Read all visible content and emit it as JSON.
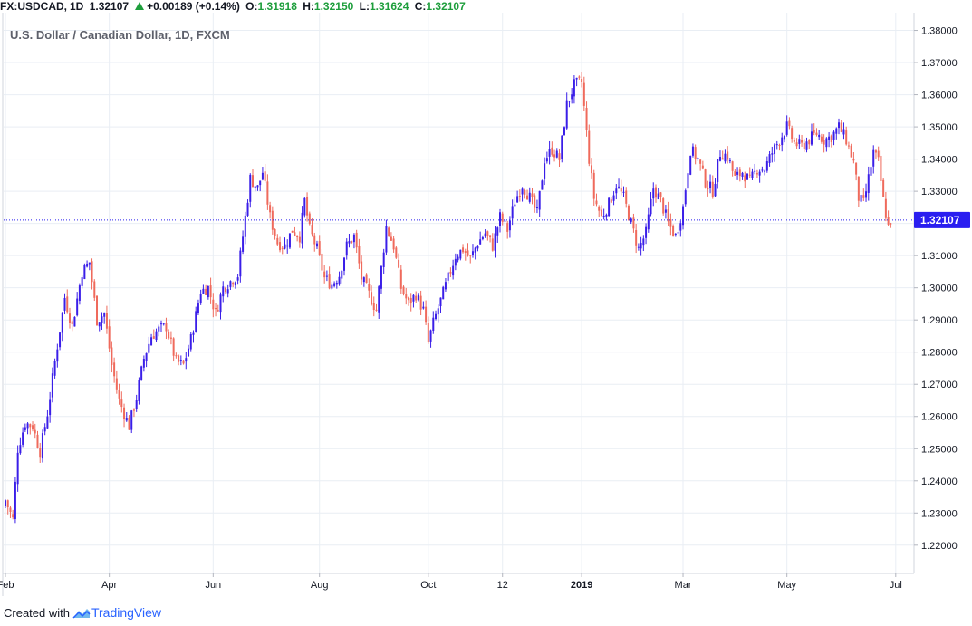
{
  "header": {
    "symbol": "FX:USDCAD,",
    "interval": "1D",
    "last": "1.32107",
    "change": "+0.00189 (+0.14%)",
    "o_label": "O:",
    "o_value": "1.31918",
    "h_label": "H:",
    "h_value": "1.32150",
    "l_label": "L:",
    "l_value": "1.31624",
    "c_label": "C:",
    "c_value": "1.32107"
  },
  "footer": {
    "created_with": "Created with",
    "brand": "TradingView"
  },
  "colors": {
    "up": "#3a1ee8",
    "down": "#ef6a5c",
    "grid": "#e9eef4",
    "price_label_bg": "#2a1ef0",
    "text": "#131722",
    "positive": "#1e9e3c"
  },
  "chart_data": {
    "type": "candlestick",
    "title": "U.S. Dollar / Canadian Dollar, 1D, FXCM",
    "ylim": [
      1.2115,
      1.3855
    ],
    "y_ticks": [
      1.22,
      1.23,
      1.24,
      1.25,
      1.26,
      1.27,
      1.28,
      1.29,
      1.3,
      1.31,
      1.32,
      1.33,
      1.34,
      1.35,
      1.36,
      1.37,
      1.38
    ],
    "y_tick_labels": [
      "1.22000",
      "1.23000",
      "1.24000",
      "1.25000",
      "1.26000",
      "1.27000",
      "1.28000",
      "1.29000",
      "1.30000",
      "1.31000",
      "1.32000",
      "1.33000",
      "1.34000",
      "1.35000",
      "1.36000",
      "1.37000",
      "1.38000"
    ],
    "x_ticks": [
      {
        "label": "Feb",
        "index": 0
      },
      {
        "label": "Apr",
        "index": 42
      },
      {
        "label": "Jun",
        "index": 84
      },
      {
        "label": "Aug",
        "index": 127
      },
      {
        "label": "Oct",
        "index": 171
      },
      {
        "label": "12",
        "index": 201
      },
      {
        "label": "2019",
        "index": 233
      },
      {
        "label": "Mar",
        "index": 274
      },
      {
        "label": "May",
        "index": 316
      },
      {
        "label": "Jul",
        "index": 360
      }
    ],
    "current_price": 1.32107,
    "current_price_label": "1.32107",
    "series_summary": "Daily USD/CAD from late Jan 2018 to late Jun 2019",
    "close_path": [
      [
        0,
        1.234
      ],
      [
        3,
        1.228
      ],
      [
        5,
        1.25
      ],
      [
        8,
        1.258
      ],
      [
        11,
        1.257
      ],
      [
        14,
        1.249
      ],
      [
        17,
        1.261
      ],
      [
        20,
        1.277
      ],
      [
        24,
        1.297
      ],
      [
        27,
        1.288
      ],
      [
        31,
        1.305
      ],
      [
        34,
        1.308
      ],
      [
        37,
        1.29
      ],
      [
        40,
        1.292
      ],
      [
        43,
        1.276
      ],
      [
        46,
        1.265
      ],
      [
        50,
        1.257
      ],
      [
        53,
        1.266
      ],
      [
        56,
        1.278
      ],
      [
        59,
        1.285
      ],
      [
        62,
        1.287
      ],
      [
        65,
        1.288
      ],
      [
        69,
        1.277
      ],
      [
        72,
        1.276
      ],
      [
        75,
        1.284
      ],
      [
        79,
        1.299
      ],
      [
        82,
        1.3
      ],
      [
        85,
        1.292
      ],
      [
        88,
        1.3
      ],
      [
        91,
        1.302
      ],
      [
        94,
        1.304
      ],
      [
        97,
        1.322
      ],
      [
        99,
        1.334
      ],
      [
        102,
        1.331
      ],
      [
        104,
        1.336
      ],
      [
        107,
        1.322
      ],
      [
        110,
        1.314
      ],
      [
        113,
        1.313
      ],
      [
        116,
        1.318
      ],
      [
        119,
        1.316
      ],
      [
        121,
        1.327
      ],
      [
        123,
        1.318
      ],
      [
        126,
        1.312
      ],
      [
        129,
        1.303
      ],
      [
        132,
        1.301
      ],
      [
        135,
        1.304
      ],
      [
        138,
        1.313
      ],
      [
        141,
        1.316
      ],
      [
        144,
        1.303
      ],
      [
        147,
        1.298
      ],
      [
        150,
        1.293
      ],
      [
        152,
        1.306
      ],
      [
        154,
        1.319
      ],
      [
        157,
        1.313
      ],
      [
        160,
        1.3
      ],
      [
        163,
        1.295
      ],
      [
        166,
        1.298
      ],
      [
        169,
        1.293
      ],
      [
        171,
        1.283
      ],
      [
        173,
        1.289
      ],
      [
        176,
        1.296
      ],
      [
        179,
        1.303
      ],
      [
        182,
        1.31
      ],
      [
        185,
        1.312
      ],
      [
        188,
        1.309
      ],
      [
        191,
        1.314
      ],
      [
        194,
        1.317
      ],
      [
        197,
        1.313
      ],
      [
        200,
        1.322
      ],
      [
        203,
        1.318
      ],
      [
        206,
        1.327
      ],
      [
        209,
        1.332
      ],
      [
        212,
        1.328
      ],
      [
        215,
        1.323
      ],
      [
        218,
        1.34
      ],
      [
        221,
        1.343
      ],
      [
        224,
        1.34
      ],
      [
        227,
        1.357
      ],
      [
        230,
        1.363
      ],
      [
        233,
        1.364
      ],
      [
        236,
        1.34
      ],
      [
        238,
        1.328
      ],
      [
        241,
        1.322
      ],
      [
        244,
        1.326
      ],
      [
        247,
        1.332
      ],
      [
        250,
        1.328
      ],
      [
        253,
        1.32
      ],
      [
        256,
        1.312
      ],
      [
        259,
        1.317
      ],
      [
        262,
        1.331
      ],
      [
        265,
        1.327
      ],
      [
        268,
        1.32
      ],
      [
        271,
        1.316
      ],
      [
        274,
        1.325
      ],
      [
        277,
        1.343
      ],
      [
        280,
        1.34
      ],
      [
        283,
        1.333
      ],
      [
        286,
        1.33
      ],
      [
        289,
        1.342
      ],
      [
        292,
        1.341
      ],
      [
        295,
        1.334
      ],
      [
        298,
        1.336
      ],
      [
        301,
        1.333
      ],
      [
        304,
        1.337
      ],
      [
        307,
        1.337
      ],
      [
        310,
        1.342
      ],
      [
        313,
        1.346
      ],
      [
        316,
        1.35
      ],
      [
        319,
        1.345
      ],
      [
        322,
        1.344
      ],
      [
        325,
        1.346
      ],
      [
        328,
        1.348
      ],
      [
        331,
        1.346
      ],
      [
        334,
        1.347
      ],
      [
        337,
        1.35
      ],
      [
        340,
        1.346
      ],
      [
        343,
        1.339
      ],
      [
        345,
        1.328
      ],
      [
        347,
        1.326
      ],
      [
        349,
        1.334
      ],
      [
        351,
        1.342
      ],
      [
        353,
        1.339
      ],
      [
        355,
        1.327
      ],
      [
        357,
        1.319
      ],
      [
        358,
        1.321
      ]
    ]
  }
}
